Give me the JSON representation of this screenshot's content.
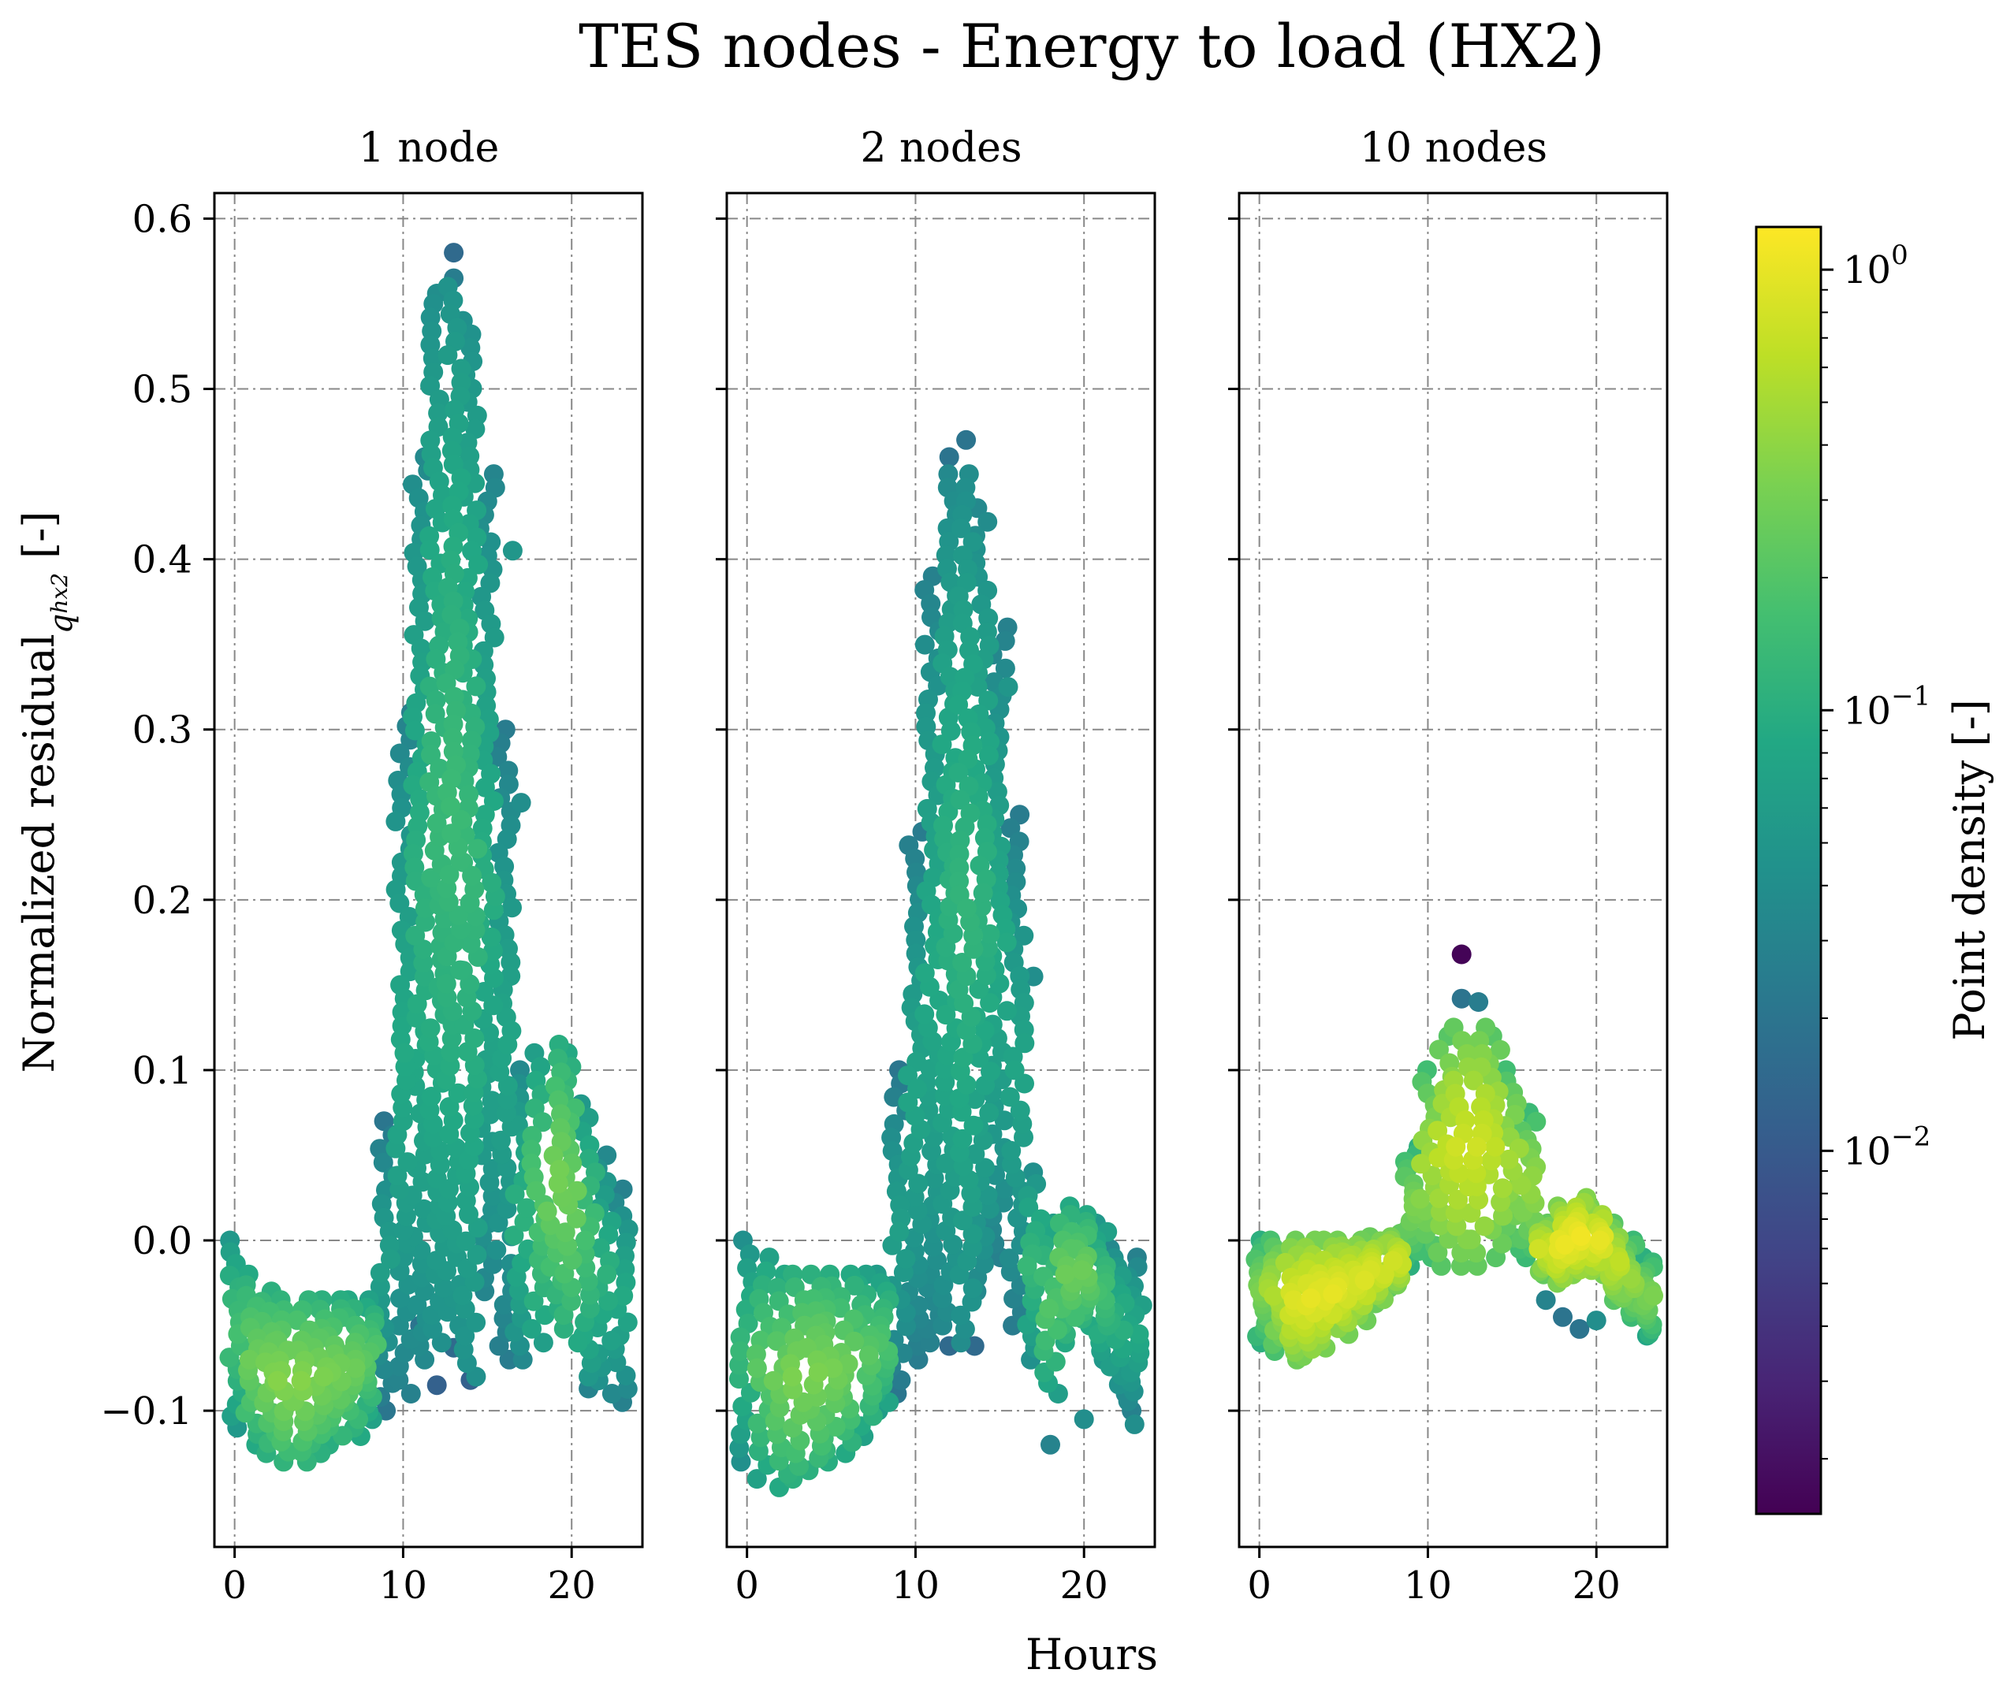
{
  "figure": {
    "title": "TES nodes - Energy to load (HX2)",
    "xlabel": "Hours",
    "ylabel_main": "Normalized residual",
    "ylabel_sub": "q",
    "ylabel_subsub": "hx2",
    "ylabel_unit": "[-]",
    "colorbar": {
      "label": "Point density [-]",
      "scale": "log",
      "range": [
        0.0015,
        1.25
      ],
      "ticks": [
        {
          "value": 1,
          "base": "10",
          "exp": "0"
        },
        {
          "value": 0.1,
          "base": "10",
          "exp": "−1"
        },
        {
          "value": 0.01,
          "base": "10",
          "exp": "−2"
        }
      ]
    }
  },
  "chart_data": [
    {
      "type": "scatter",
      "title": "1 node",
      "xlabel": "Hours",
      "ylabel": "Normalized residual q_hx2 [-]",
      "xlim": [
        -1.2,
        24.2
      ],
      "ylim": [
        -0.18,
        0.615
      ],
      "xticks": [
        "0",
        "10",
        "20"
      ],
      "yticks": [
        "0.6",
        "0.5",
        "0.4",
        "0.3",
        "0.2",
        "0.1",
        "0.0",
        "−0.1"
      ],
      "grid": true,
      "hourly_profile": [
        {
          "x": 0,
          "min": -0.11,
          "max": 0.0,
          "d": 0.15
        },
        {
          "x": 1,
          "min": -0.12,
          "max": -0.02,
          "d": 0.25
        },
        {
          "x": 2,
          "min": -0.125,
          "max": -0.03,
          "d": 0.3
        },
        {
          "x": 3,
          "min": -0.13,
          "max": -0.035,
          "d": 0.33
        },
        {
          "x": 4,
          "min": -0.13,
          "max": -0.035,
          "d": 0.33
        },
        {
          "x": 5,
          "min": -0.125,
          "max": -0.035,
          "d": 0.3
        },
        {
          "x": 6,
          "min": -0.12,
          "max": -0.035,
          "d": 0.28
        },
        {
          "x": 7,
          "min": -0.115,
          "max": -0.035,
          "d": 0.25
        },
        {
          "x": 8,
          "min": -0.105,
          "max": -0.035,
          "d": 0.2
        },
        {
          "x": 9,
          "min": -0.1,
          "max": 0.07,
          "d": 0.06
        },
        {
          "x": 10,
          "min": -0.09,
          "max": 0.31,
          "d": 0.08
        },
        {
          "x": 11,
          "min": -0.07,
          "max": 0.46,
          "d": 0.1
        },
        {
          "x": 12,
          "min": -0.06,
          "max": 0.55,
          "d": 0.12
        },
        {
          "x": 13,
          "min": -0.05,
          "max": 0.56,
          "d": 0.13
        },
        {
          "x": 14,
          "min": -0.08,
          "max": 0.54,
          "d": 0.12
        },
        {
          "x": 15,
          "min": -0.03,
          "max": 0.45,
          "d": 0.09
        },
        {
          "x": 16,
          "min": -0.07,
          "max": 0.3,
          "d": 0.07
        },
        {
          "x": 17,
          "min": -0.07,
          "max": 0.1,
          "d": 0.1
        },
        {
          "x": 18,
          "min": -0.06,
          "max": 0.11,
          "d": 0.18
        },
        {
          "x": 19,
          "min": -0.04,
          "max": 0.115,
          "d": 0.28
        },
        {
          "x": 20,
          "min": -0.06,
          "max": 0.11,
          "d": 0.25
        },
        {
          "x": 21,
          "min": -0.08,
          "max": 0.08,
          "d": 0.15
        },
        {
          "x": 22,
          "min": -0.09,
          "max": 0.05,
          "d": 0.1
        },
        {
          "x": 23,
          "min": -0.095,
          "max": 0.03,
          "d": 0.08
        }
      ],
      "outliers": [
        {
          "x": 13,
          "y": 0.58,
          "d": 0.015
        },
        {
          "x": 12,
          "y": 0.556,
          "d": 0.04
        },
        {
          "x": 13,
          "y": 0.565,
          "d": 0.025
        },
        {
          "x": 16.5,
          "y": 0.405,
          "d": 0.05
        },
        {
          "x": 17,
          "y": 0.257,
          "d": 0.04
        },
        {
          "x": 12,
          "y": -0.085,
          "d": 0.012
        },
        {
          "x": 14,
          "y": -0.082,
          "d": 0.012
        },
        {
          "x": 13,
          "y": -0.063,
          "d": 0.015
        },
        {
          "x": 11,
          "y": -0.05,
          "d": 0.02
        },
        {
          "x": 21,
          "y": -0.087,
          "d": 0.03
        }
      ]
    },
    {
      "type": "scatter",
      "title": "2 nodes",
      "xlabel": "Hours",
      "xlim": [
        -1.2,
        24.2
      ],
      "ylim": [
        -0.18,
        0.615
      ],
      "xticks": [
        "0",
        "10",
        "20"
      ],
      "grid": true,
      "hourly_profile": [
        {
          "x": 0,
          "min": -0.13,
          "max": 0.0,
          "d": 0.12
        },
        {
          "x": 1,
          "min": -0.14,
          "max": -0.01,
          "d": 0.2
        },
        {
          "x": 2,
          "min": -0.145,
          "max": -0.02,
          "d": 0.25
        },
        {
          "x": 3,
          "min": -0.14,
          "max": -0.02,
          "d": 0.3
        },
        {
          "x": 4,
          "min": -0.135,
          "max": -0.02,
          "d": 0.3
        },
        {
          "x": 5,
          "min": -0.13,
          "max": -0.02,
          "d": 0.28
        },
        {
          "x": 6,
          "min": -0.125,
          "max": -0.02,
          "d": 0.25
        },
        {
          "x": 7,
          "min": -0.115,
          "max": -0.02,
          "d": 0.2
        },
        {
          "x": 8,
          "min": -0.1,
          "max": -0.02,
          "d": 0.17
        },
        {
          "x": 9,
          "min": -0.09,
          "max": 0.1,
          "d": 0.06
        },
        {
          "x": 10,
          "min": -0.07,
          "max": 0.24,
          "d": 0.07
        },
        {
          "x": 11,
          "min": -0.06,
          "max": 0.39,
          "d": 0.08
        },
        {
          "x": 12,
          "min": -0.05,
          "max": 0.45,
          "d": 0.1
        },
        {
          "x": 13,
          "min": -0.06,
          "max": 0.45,
          "d": 0.11
        },
        {
          "x": 14,
          "min": -0.03,
          "max": 0.43,
          "d": 0.1
        },
        {
          "x": 15,
          "min": -0.01,
          "max": 0.36,
          "d": 0.08
        },
        {
          "x": 16,
          "min": -0.05,
          "max": 0.25,
          "d": 0.07
        },
        {
          "x": 17,
          "min": -0.07,
          "max": 0.04,
          "d": 0.12
        },
        {
          "x": 18,
          "min": -0.09,
          "max": 0.01,
          "d": 0.18
        },
        {
          "x": 19,
          "min": -0.06,
          "max": 0.02,
          "d": 0.25
        },
        {
          "x": 20,
          "min": -0.05,
          "max": 0.015,
          "d": 0.25
        },
        {
          "x": 21,
          "min": -0.07,
          "max": 0.01,
          "d": 0.15
        },
        {
          "x": 22,
          "min": -0.09,
          "max": -0.005,
          "d": 0.1
        },
        {
          "x": 23,
          "min": -0.1,
          "max": -0.01,
          "d": 0.08
        }
      ],
      "outliers": [
        {
          "x": 13,
          "y": 0.47,
          "d": 0.02
        },
        {
          "x": 12,
          "y": 0.46,
          "d": 0.02
        },
        {
          "x": 15.5,
          "y": 0.325,
          "d": 0.05
        },
        {
          "x": 17,
          "y": 0.155,
          "d": 0.04
        },
        {
          "x": 18,
          "y": -0.12,
          "d": 0.03
        },
        {
          "x": 20,
          "y": -0.105,
          "d": 0.04
        },
        {
          "x": 23,
          "y": -0.108,
          "d": 0.04
        },
        {
          "x": 12,
          "y": -0.062,
          "d": 0.015
        },
        {
          "x": 13.5,
          "y": -0.062,
          "d": 0.015
        },
        {
          "x": 10,
          "y": -0.066,
          "d": 0.02
        }
      ]
    },
    {
      "type": "scatter",
      "title": "10 nodes",
      "xlabel": "Hours",
      "xlim": [
        -1.2,
        24.2
      ],
      "ylim": [
        -0.18,
        0.615
      ],
      "xticks": [
        "0",
        "10",
        "20"
      ],
      "grid": true,
      "hourly_profile": [
        {
          "x": 0,
          "min": -0.06,
          "max": 0.0,
          "d": 0.3
        },
        {
          "x": 1,
          "min": -0.065,
          "max": 0.0,
          "d": 0.5
        },
        {
          "x": 2,
          "min": -0.07,
          "max": 0.0,
          "d": 0.8
        },
        {
          "x": 3,
          "min": -0.068,
          "max": 0.0,
          "d": 0.9
        },
        {
          "x": 4,
          "min": -0.063,
          "max": 0.0,
          "d": 0.9
        },
        {
          "x": 5,
          "min": -0.055,
          "max": 0.0,
          "d": 0.85
        },
        {
          "x": 6,
          "min": -0.047,
          "max": 0.0,
          "d": 0.8
        },
        {
          "x": 7,
          "min": -0.037,
          "max": 0.002,
          "d": 0.75
        },
        {
          "x": 8,
          "min": -0.028,
          "max": 0.004,
          "d": 0.7
        },
        {
          "x": 9,
          "min": -0.015,
          "max": 0.055,
          "d": 0.3
        },
        {
          "x": 10,
          "min": -0.01,
          "max": 0.1,
          "d": 0.45
        },
        {
          "x": 11,
          "min": -0.015,
          "max": 0.12,
          "d": 0.6
        },
        {
          "x": 12,
          "min": -0.015,
          "max": 0.125,
          "d": 0.7
        },
        {
          "x": 13,
          "min": -0.015,
          "max": 0.125,
          "d": 0.7
        },
        {
          "x": 14,
          "min": -0.01,
          "max": 0.12,
          "d": 0.6
        },
        {
          "x": 15,
          "min": -0.005,
          "max": 0.1,
          "d": 0.45
        },
        {
          "x": 16,
          "min": -0.01,
          "max": 0.075,
          "d": 0.4
        },
        {
          "x": 17,
          "min": -0.02,
          "max": 0.01,
          "d": 0.7
        },
        {
          "x": 18,
          "min": -0.025,
          "max": 0.02,
          "d": 0.95
        },
        {
          "x": 19,
          "min": -0.02,
          "max": 0.025,
          "d": 1.0
        },
        {
          "x": 20,
          "min": -0.02,
          "max": 0.02,
          "d": 0.9
        },
        {
          "x": 21,
          "min": -0.035,
          "max": 0.01,
          "d": 0.6
        },
        {
          "x": 22,
          "min": -0.045,
          "max": 0.0,
          "d": 0.4
        },
        {
          "x": 23,
          "min": -0.055,
          "max": -0.01,
          "d": 0.3
        }
      ],
      "outliers": [
        {
          "x": 12,
          "y": 0.168,
          "d": 0.0016
        },
        {
          "x": 12,
          "y": 0.142,
          "d": 0.02
        },
        {
          "x": 13,
          "y": 0.14,
          "d": 0.025
        },
        {
          "x": 17,
          "y": -0.035,
          "d": 0.03
        },
        {
          "x": 18,
          "y": -0.045,
          "d": 0.02
        },
        {
          "x": 19,
          "y": -0.052,
          "d": 0.02
        },
        {
          "x": 20,
          "y": -0.047,
          "d": 0.04
        },
        {
          "x": 23,
          "y": -0.056,
          "d": 0.08
        }
      ]
    }
  ]
}
